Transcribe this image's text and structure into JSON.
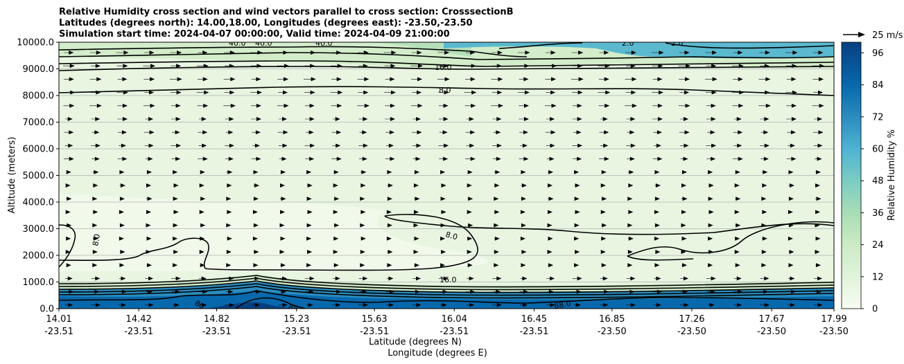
{
  "chart_data": {
    "type": "contour",
    "title_lines": [
      "Relative Humidity cross section and wind vectors parallel to cross section: CrosssectionB",
      "Latitudes (degrees north): 14.00,18.00, Longitudes (degrees east): -23.50,-23.50",
      "Simulation start time: 2024-04-07 00:00:00, Valid time: 2024-04-09 21:00:00"
    ],
    "ylabel": "Altitude (meters)",
    "xlabel_lines": [
      "Latitude (degrees N)",
      "Longitude (degrees E)"
    ],
    "ylim": [
      0,
      10000
    ],
    "yticks": [
      "0.0",
      "1000.0",
      "2000.0",
      "3000.0",
      "4000.0",
      "5000.0",
      "6000.0",
      "7000.0",
      "8000.0",
      "9000.0",
      "10000.0"
    ],
    "ytick_values": [
      0,
      1000,
      2000,
      3000,
      4000,
      5000,
      6000,
      7000,
      8000,
      9000,
      10000
    ],
    "xlim": [
      14.01,
      17.99
    ],
    "xticks": [
      {
        "lat": "14.01",
        "lon": "-23.51",
        "value": 14.01
      },
      {
        "lat": "14.42",
        "lon": "-23.51",
        "value": 14.42
      },
      {
        "lat": "14.82",
        "lon": "-23.51",
        "value": 14.82
      },
      {
        "lat": "15.23",
        "lon": "-23.51",
        "value": 15.23
      },
      {
        "lat": "15.63",
        "lon": "-23.51",
        "value": 15.63
      },
      {
        "lat": "16.04",
        "lon": "-23.51",
        "value": 16.04
      },
      {
        "lat": "16.45",
        "lon": "-23.51",
        "value": 16.45
      },
      {
        "lat": "16.85",
        "lon": "-23.50",
        "value": 16.85
      },
      {
        "lat": "17.26",
        "lon": "-23.50",
        "value": 17.26
      },
      {
        "lat": "17.67",
        "lon": "-23.50",
        "value": 17.67
      },
      {
        "lat": "17.99",
        "lon": "-23.50",
        "value": 17.99
      }
    ],
    "grid": "horizontal",
    "colorbar": {
      "label": "Relative Humidity %",
      "range": [
        0,
        100
      ],
      "ticks": [
        "0",
        "12",
        "24",
        "36",
        "48",
        "60",
        "72",
        "84",
        "96"
      ],
      "tick_values": [
        0,
        12,
        24,
        36,
        48,
        60,
        72,
        84,
        96
      ],
      "colormap": "GnBu"
    },
    "quiver_key": "25 m/s",
    "contour_labels": [
      {
        "text": "40.0"
      },
      {
        "text": "40.0"
      },
      {
        "text": "40.0"
      },
      {
        "text": "2.0"
      },
      {
        "text": "2.0"
      },
      {
        "text": "16.0"
      },
      {
        "text": "8.0"
      },
      {
        "text": "8.0"
      },
      {
        "text": "8.0"
      },
      {
        "text": "16.0"
      },
      {
        "text": "88.0"
      },
      {
        "text": "88.0"
      },
      {
        "text": "80"
      }
    ]
  }
}
